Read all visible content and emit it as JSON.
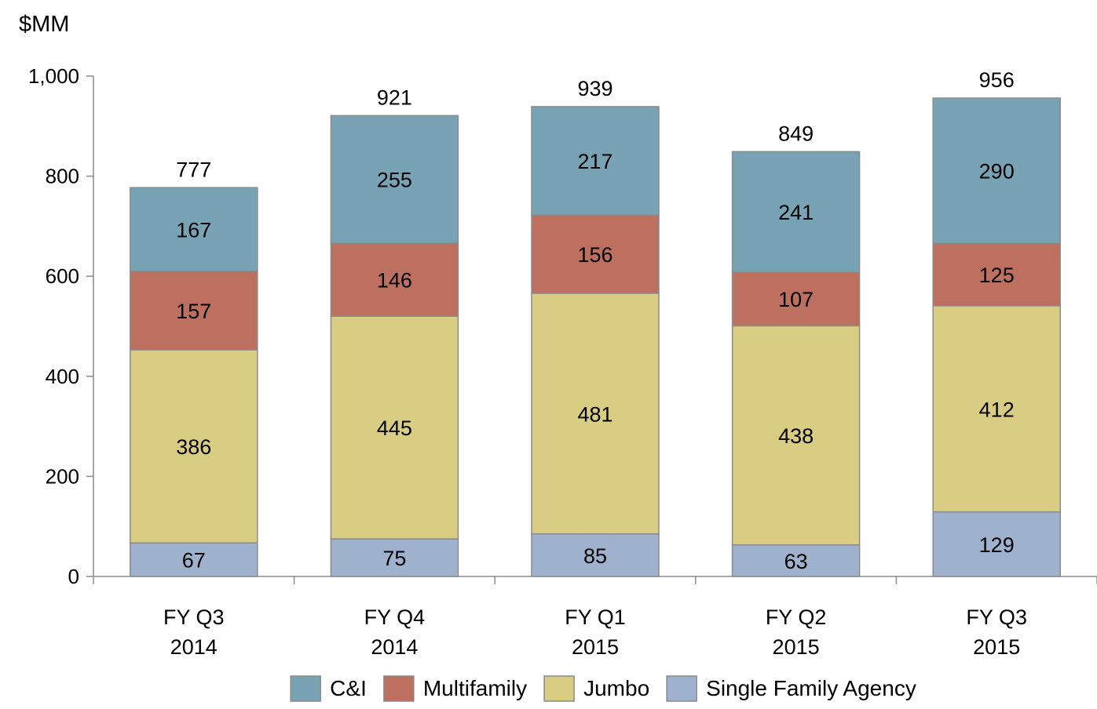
{
  "chart_data": {
    "type": "bar",
    "stacked": true,
    "unit_label": "$MM",
    "categories": [
      [
        "FY Q3",
        "2014"
      ],
      [
        "FY Q4",
        "2014"
      ],
      [
        "FY Q1",
        "2015"
      ],
      [
        "FY Q2",
        "2015"
      ],
      [
        "FY Q3",
        "2015"
      ]
    ],
    "series": [
      {
        "name": "Single Family Agency",
        "color": "#9fb2cd",
        "values": [
          67,
          75,
          85,
          63,
          129
        ]
      },
      {
        "name": "Jumbo",
        "color": "#d8cd82",
        "values": [
          386,
          445,
          481,
          438,
          412
        ]
      },
      {
        "name": "Multifamily",
        "color": "#bd7060",
        "values": [
          157,
          146,
          156,
          107,
          125
        ]
      },
      {
        "name": "C&I",
        "color": "#77a3b4",
        "values": [
          167,
          255,
          217,
          241,
          290
        ]
      }
    ],
    "totals": [
      777,
      921,
      939,
      849,
      956
    ],
    "y_ticks": [
      "0",
      "200",
      "400",
      "600",
      "800",
      "1,000"
    ],
    "ylim": [
      0,
      1000
    ],
    "legend_order": [
      "C&I",
      "Multifamily",
      "Jumbo",
      "Single Family Agency"
    ],
    "legend_placement": "bottom",
    "grid": false
  }
}
